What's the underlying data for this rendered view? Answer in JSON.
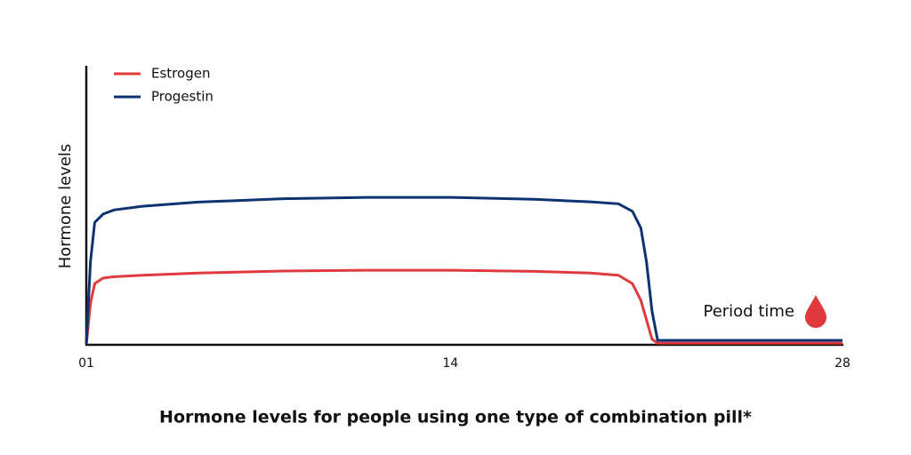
{
  "chart_data": {
    "type": "line",
    "title": "Hormone levels for people using one type of combination pill*",
    "ylabel": "Hormone levels",
    "annotation": "Period time",
    "x": [
      1,
      1.15,
      1.3,
      1.6,
      2,
      3,
      5,
      8,
      11,
      14,
      17,
      19,
      20,
      20.5,
      20.8,
      21,
      21.2,
      21.4,
      22,
      28
    ],
    "series": [
      {
        "name": "Estrogen",
        "color": "#e03a3e",
        "values": [
          0,
          15,
          22,
          24,
          24.5,
          25,
          25.8,
          26.5,
          26.8,
          26.8,
          26.4,
          25.8,
          25,
          22,
          16,
          9,
          2,
          0.6,
          0.6,
          0.6
        ]
      },
      {
        "name": "Progestin",
        "color": "#0d3372",
        "values": [
          0,
          30,
          44,
          47,
          48.5,
          49.8,
          51.3,
          52.5,
          53,
          53,
          52.3,
          51.4,
          50.7,
          48,
          42,
          30,
          12,
          1.6,
          1.6,
          1.6
        ]
      }
    ],
    "xlim": [
      1,
      28
    ],
    "xticks": [
      {
        "value": 1,
        "label": "01"
      },
      14,
      28
    ],
    "ylim": [
      0,
      100
    ],
    "legend": "top-left"
  }
}
